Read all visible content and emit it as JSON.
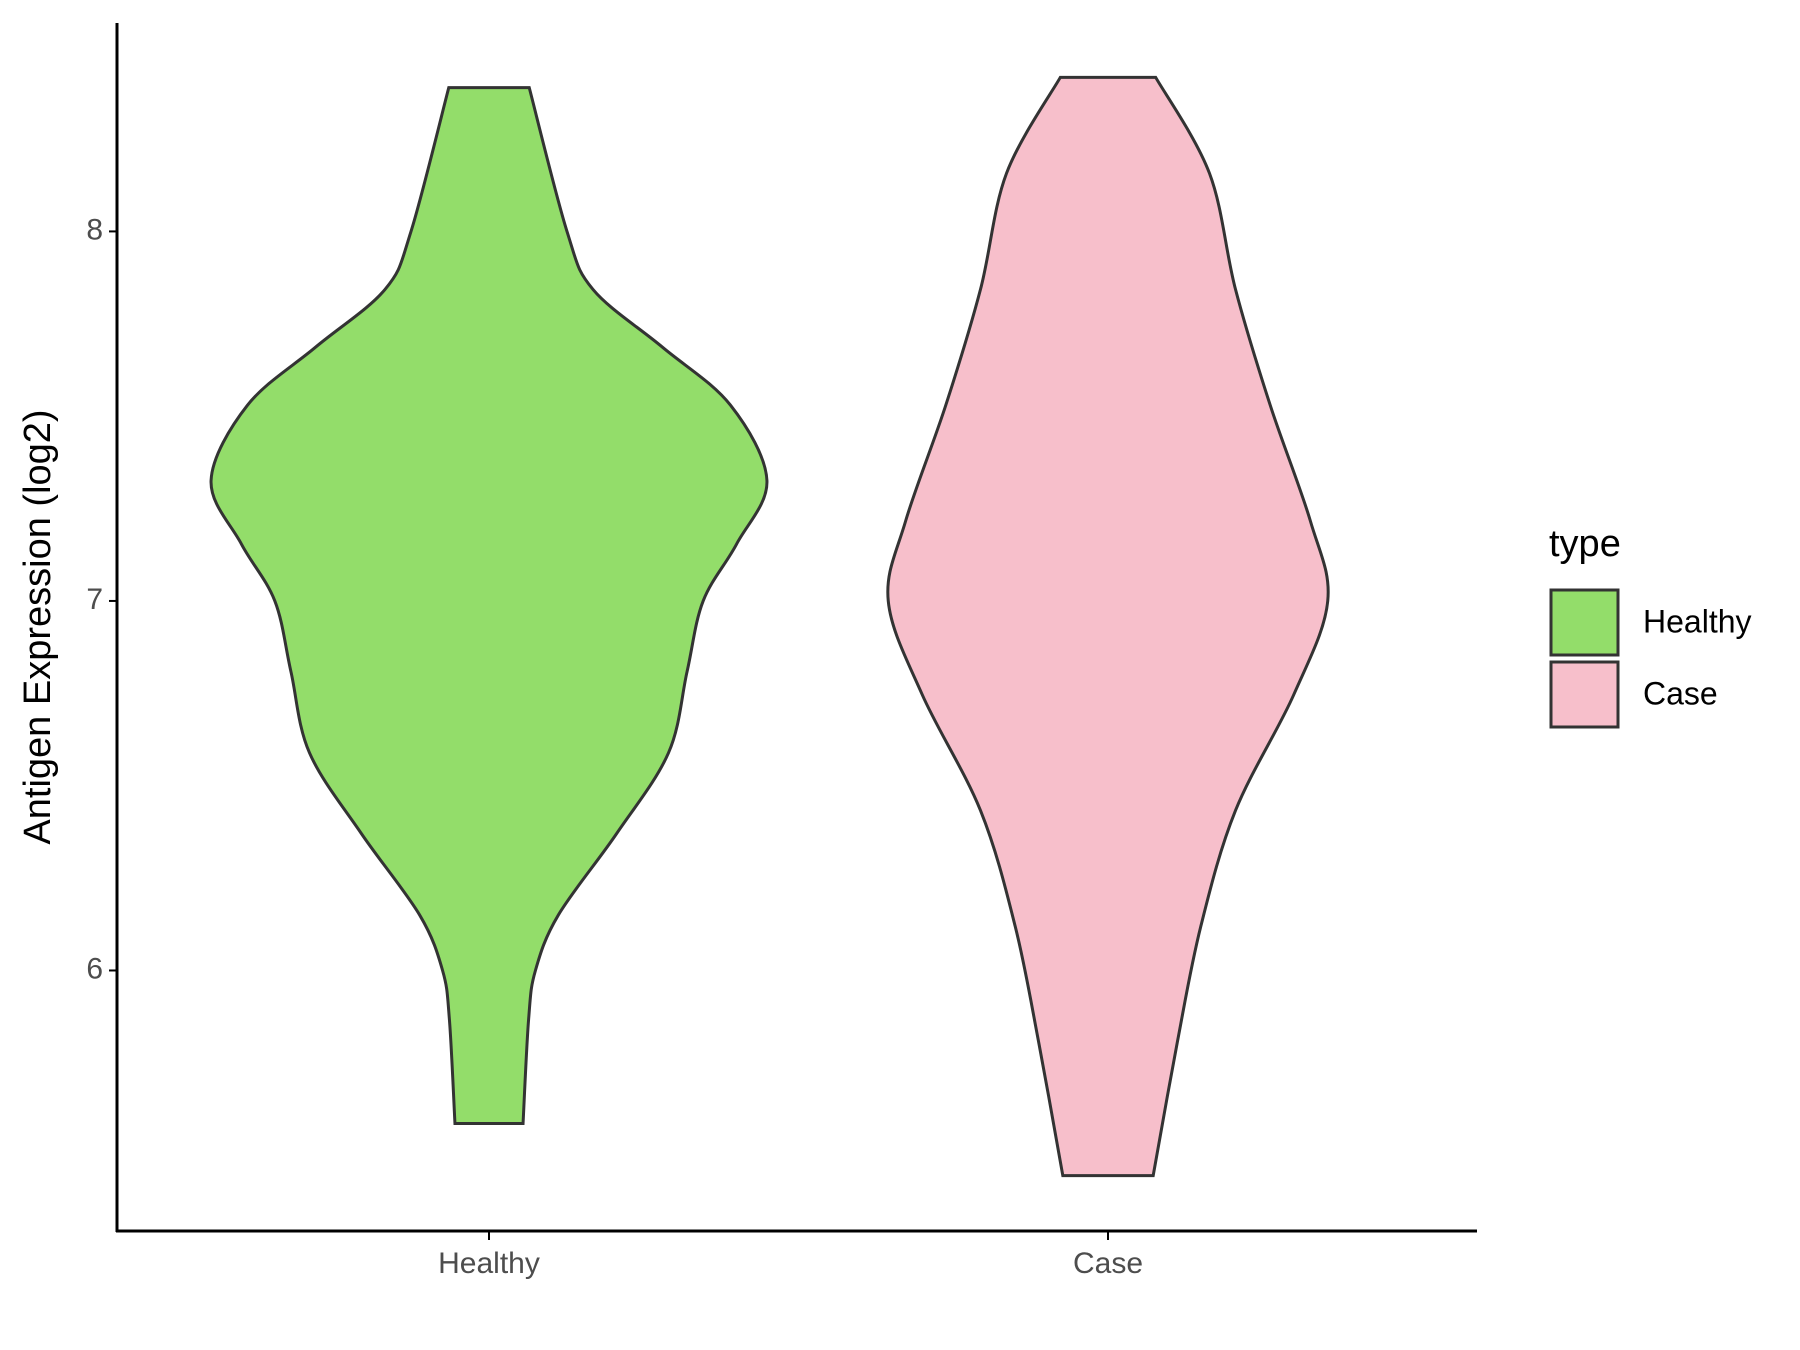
{
  "chart_data": {
    "type": "violin",
    "y_label": "Antigen Expression (log2)",
    "categories": [
      "Healthy",
      "Case"
    ],
    "legend_title": "type",
    "legend_position": "right",
    "ylim": [
      5.295,
      8.564
    ],
    "yticks": [
      6,
      7,
      8
    ],
    "series": [
      {
        "name": "Healthy",
        "color": "#93dd6a",
        "y": [
          8.389,
          8.0,
          7.843,
          7.687,
          7.53,
          7.326,
          7.154,
          7.0,
          6.809,
          6.589,
          6.37,
          6.15,
          6.0,
          5.868,
          5.586
        ],
        "half_width": [
          0.065,
          0.126,
          0.168,
          0.28,
          0.39,
          0.449,
          0.4,
          0.346,
          0.32,
          0.29,
          0.206,
          0.112,
          0.075,
          0.064,
          0.055
        ]
      },
      {
        "name": "Case",
        "color": "#f7bfcb",
        "y": [
          8.417,
          8.157,
          7.843,
          7.53,
          7.216,
          7.0,
          6.746,
          6.433,
          6.12,
          5.806,
          5.445
        ],
        "half_width": [
          0.077,
          0.164,
          0.206,
          0.262,
          0.327,
          0.355,
          0.3,
          0.206,
          0.15,
          0.112,
          0.073
        ]
      }
    ]
  }
}
